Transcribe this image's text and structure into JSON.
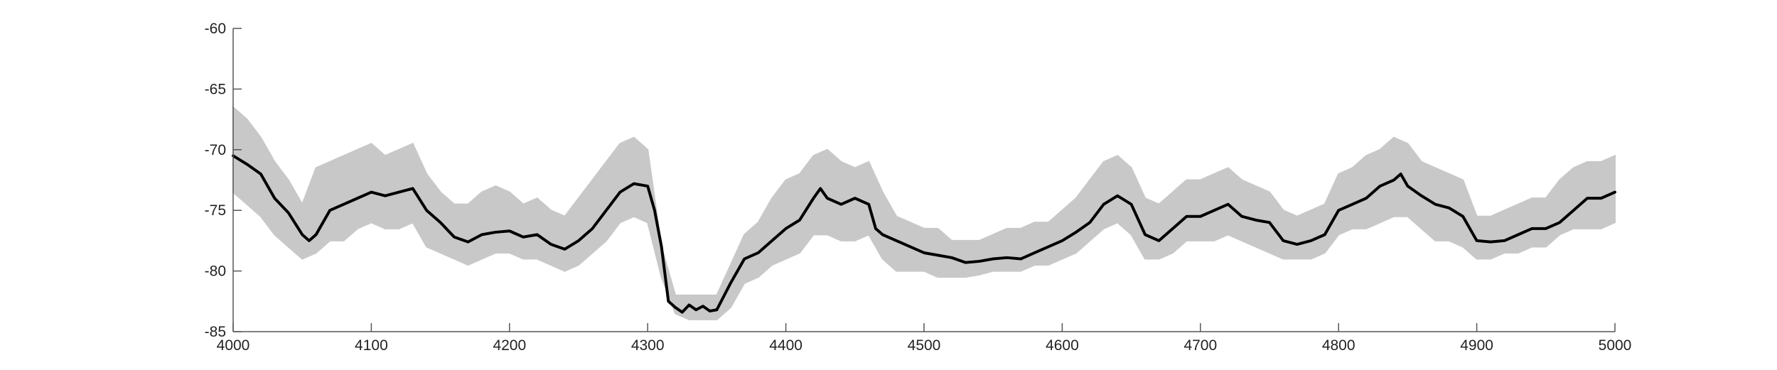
{
  "chart_data": {
    "type": "line",
    "title": "",
    "xlabel": "",
    "ylabel": "",
    "xlim": [
      4000,
      5000
    ],
    "ylim": [
      -85,
      -60
    ],
    "xticks": [
      4000,
      4100,
      4200,
      4300,
      4400,
      4500,
      4600,
      4700,
      4800,
      4900,
      5000
    ],
    "yticks": [
      -85,
      -80,
      -75,
      -70,
      -65,
      -60
    ],
    "grid": false,
    "colors": {
      "mean_line": "#000000",
      "band": "#c8c8c8",
      "axis": "#555555"
    },
    "series": [
      {
        "role": "mean",
        "x": [
          4000,
          4010,
          4020,
          4030,
          4040,
          4050,
          4055,
          4060,
          4070,
          4080,
          4090,
          4100,
          4110,
          4120,
          4130,
          4140,
          4150,
          4160,
          4170,
          4180,
          4190,
          4200,
          4210,
          4220,
          4230,
          4240,
          4250,
          4260,
          4270,
          4280,
          4290,
          4300,
          4305,
          4310,
          4315,
          4320,
          4325,
          4330,
          4335,
          4340,
          4345,
          4350,
          4360,
          4370,
          4380,
          4390,
          4400,
          4410,
          4420,
          4425,
          4430,
          4440,
          4450,
          4460,
          4465,
          4470,
          4480,
          4490,
          4500,
          4510,
          4520,
          4530,
          4540,
          4550,
          4560,
          4570,
          4580,
          4590,
          4600,
          4610,
          4620,
          4630,
          4640,
          4650,
          4660,
          4670,
          4680,
          4690,
          4700,
          4710,
          4720,
          4730,
          4740,
          4750,
          4760,
          4770,
          4780,
          4790,
          4800,
          4810,
          4820,
          4830,
          4840,
          4845,
          4850,
          4860,
          4870,
          4880,
          4890,
          4900,
          4910,
          4920,
          4930,
          4940,
          4950,
          4960,
          4970,
          4980,
          4990,
          5000
        ],
        "y": [
          -70.5,
          -71.2,
          -72.0,
          -74.0,
          -75.2,
          -77.0,
          -77.5,
          -77.0,
          -75.0,
          -74.5,
          -74.0,
          -73.5,
          -73.8,
          -73.5,
          -73.2,
          -75.0,
          -76.0,
          -77.2,
          -77.6,
          -77.0,
          -76.8,
          -76.7,
          -77.2,
          -77.0,
          -77.8,
          -78.2,
          -77.5,
          -76.5,
          -75.0,
          -73.5,
          -72.8,
          -73.0,
          -75.0,
          -78.0,
          -82.5,
          -83.0,
          -83.4,
          -82.8,
          -83.2,
          -82.9,
          -83.3,
          -83.2,
          -81.0,
          -79.0,
          -78.5,
          -77.5,
          -76.5,
          -75.8,
          -74.0,
          -73.2,
          -74.0,
          -74.5,
          -74.0,
          -74.5,
          -76.5,
          -77.0,
          -77.5,
          -78.0,
          -78.5,
          -78.7,
          -78.9,
          -79.3,
          -79.2,
          -79.0,
          -78.9,
          -79.0,
          -78.5,
          -78.0,
          -77.5,
          -76.8,
          -76.0,
          -74.5,
          -73.8,
          -74.5,
          -77.0,
          -77.5,
          -76.5,
          -75.5,
          -75.5,
          -75.0,
          -74.5,
          -75.5,
          -75.8,
          -76.0,
          -77.5,
          -77.8,
          -77.5,
          -77.0,
          -75.0,
          -74.5,
          -74.0,
          -73.0,
          -72.5,
          -72.0,
          -73.0,
          -73.8,
          -74.5,
          -74.8,
          -75.5,
          -77.5,
          -77.6,
          -77.5,
          -77.0,
          -76.5,
          -76.5,
          -76.0,
          -75.0,
          -74.0,
          -74.0,
          -73.5
        ]
      },
      {
        "role": "band",
        "x": [
          4000,
          4010,
          4020,
          4030,
          4040,
          4050,
          4060,
          4070,
          4080,
          4090,
          4100,
          4110,
          4120,
          4130,
          4140,
          4150,
          4160,
          4170,
          4180,
          4190,
          4200,
          4210,
          4220,
          4230,
          4240,
          4250,
          4260,
          4270,
          4280,
          4290,
          4300,
          4310,
          4320,
          4330,
          4340,
          4350,
          4360,
          4370,
          4380,
          4390,
          4400,
          4410,
          4420,
          4430,
          4440,
          4450,
          4460,
          4470,
          4480,
          4490,
          4500,
          4510,
          4520,
          4530,
          4540,
          4550,
          4560,
          4570,
          4580,
          4590,
          4600,
          4610,
          4620,
          4630,
          4640,
          4650,
          4660,
          4670,
          4680,
          4690,
          4700,
          4710,
          4720,
          4730,
          4740,
          4750,
          4760,
          4770,
          4780,
          4790,
          4800,
          4810,
          4820,
          4830,
          4840,
          4850,
          4860,
          4870,
          4880,
          4890,
          4900,
          4910,
          4920,
          4930,
          4940,
          4950,
          4960,
          4970,
          4980,
          4990,
          5000
        ],
        "upper": [
          -66.5,
          -67.5,
          -69.0,
          -71.0,
          -72.5,
          -74.5,
          -71.5,
          -71.0,
          -70.5,
          -70.0,
          -69.5,
          -70.5,
          -70.0,
          -69.5,
          -72.0,
          -73.5,
          -74.5,
          -74.5,
          -73.5,
          -73.0,
          -73.5,
          -74.5,
          -74.0,
          -75.0,
          -75.5,
          -74.0,
          -72.5,
          -71.0,
          -69.5,
          -69.0,
          -70.0,
          -78.0,
          -82.0,
          -82.0,
          -82.0,
          -82.0,
          -79.5,
          -77.0,
          -76.0,
          -74.0,
          -72.5,
          -72.0,
          -70.5,
          -70.0,
          -71.0,
          -71.5,
          -71.0,
          -73.5,
          -75.5,
          -76.0,
          -76.5,
          -76.5,
          -77.5,
          -77.5,
          -77.5,
          -77.0,
          -76.5,
          -76.5,
          -76.0,
          -76.0,
          -75.0,
          -74.0,
          -72.5,
          -71.0,
          -70.5,
          -71.5,
          -74.0,
          -74.5,
          -73.5,
          -72.5,
          -72.5,
          -72.0,
          -71.5,
          -72.5,
          -73.0,
          -73.5,
          -75.0,
          -75.5,
          -75.0,
          -74.5,
          -72.0,
          -71.5,
          -70.5,
          -70.0,
          -69.0,
          -69.5,
          -71.0,
          -71.5,
          -72.0,
          -72.5,
          -75.5,
          -75.5,
          -75.0,
          -74.5,
          -74.0,
          -74.0,
          -72.5,
          -71.5,
          -71.0,
          -71.0,
          -70.5
        ],
        "lower": [
          -73.5,
          -74.5,
          -75.5,
          -77.0,
          -78.0,
          -79.0,
          -78.5,
          -77.5,
          -77.5,
          -76.5,
          -76.0,
          -76.5,
          -76.5,
          -76.0,
          -78.0,
          -78.5,
          -79.0,
          -79.5,
          -79.0,
          -78.5,
          -78.5,
          -79.0,
          -79.0,
          -79.5,
          -80.0,
          -79.5,
          -78.5,
          -77.5,
          -76.0,
          -75.5,
          -76.0,
          -80.5,
          -83.5,
          -84.0,
          -84.0,
          -84.0,
          -83.0,
          -81.0,
          -80.5,
          -79.5,
          -79.0,
          -78.5,
          -77.0,
          -77.0,
          -77.5,
          -77.5,
          -77.0,
          -79.0,
          -80.0,
          -80.0,
          -80.0,
          -80.5,
          -80.5,
          -80.5,
          -80.3,
          -80.0,
          -80.0,
          -80.0,
          -79.5,
          -79.5,
          -79.0,
          -78.5,
          -77.5,
          -76.5,
          -76.0,
          -77.0,
          -79.0,
          -79.0,
          -78.5,
          -77.5,
          -77.5,
          -77.5,
          -77.0,
          -77.5,
          -78.0,
          -78.5,
          -79.0,
          -79.0,
          -79.0,
          -78.5,
          -77.0,
          -76.5,
          -76.5,
          -76.0,
          -75.5,
          -75.5,
          -76.5,
          -77.5,
          -77.5,
          -78.0,
          -79.0,
          -79.0,
          -78.5,
          -78.5,
          -78.0,
          -78.0,
          -77.0,
          -76.5,
          -76.5,
          -76.5,
          -76.0
        ]
      }
    ]
  }
}
